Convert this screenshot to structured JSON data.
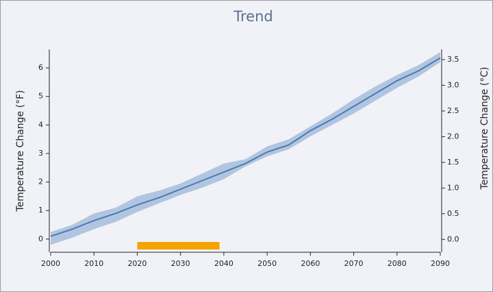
{
  "chart_data": {
    "type": "band-line",
    "title": "Trend",
    "y_label": "Temperature Change (°F)",
    "y2_label": "Temperature Change (°C)",
    "x": [
      2000,
      2005,
      2010,
      2015,
      2020,
      2025,
      2030,
      2035,
      2040,
      2045,
      2050,
      2055,
      2060,
      2065,
      2070,
      2075,
      2080,
      2085,
      2090
    ],
    "values": [
      0.1,
      0.35,
      0.65,
      0.9,
      1.2,
      1.45,
      1.75,
      2.05,
      2.35,
      2.65,
      3.05,
      3.3,
      3.8,
      4.2,
      4.65,
      5.1,
      5.55,
      5.9,
      6.35
    ],
    "lower": [
      -0.2,
      0.05,
      0.35,
      0.6,
      0.95,
      1.25,
      1.55,
      1.8,
      2.1,
      2.55,
      2.9,
      3.15,
      3.6,
      4.0,
      4.4,
      4.85,
      5.3,
      5.7,
      6.2
    ],
    "upper": [
      0.25,
      0.5,
      0.9,
      1.1,
      1.5,
      1.7,
      1.95,
      2.3,
      2.65,
      2.8,
      3.25,
      3.5,
      3.95,
      4.4,
      4.9,
      5.35,
      5.75,
      6.1,
      6.55
    ],
    "color": "#4a7ab0",
    "band_color": "#b2c5e0",
    "highlight": [
      2020,
      2039
    ],
    "highlight_color": "#f5a300",
    "xlim": [
      2000,
      2090
    ],
    "xticks": [
      2000,
      2010,
      2020,
      2030,
      2040,
      2050,
      2060,
      2070,
      2080,
      2090
    ],
    "ylim": [
      -0.46,
      6.65
    ],
    "yticks": [
      0,
      1,
      2,
      3,
      4,
      5,
      6
    ],
    "y2lim": [
      -0.25,
      3.7
    ],
    "y2ticks": [
      {
        "value": 0,
        "label": "0.0"
      },
      0.5,
      {
        "value": 1,
        "label": "1.0"
      },
      1.5,
      {
        "value": 2,
        "label": "2.0"
      },
      2.5,
      {
        "value": 3,
        "label": "3.0"
      },
      3.5
    ]
  }
}
